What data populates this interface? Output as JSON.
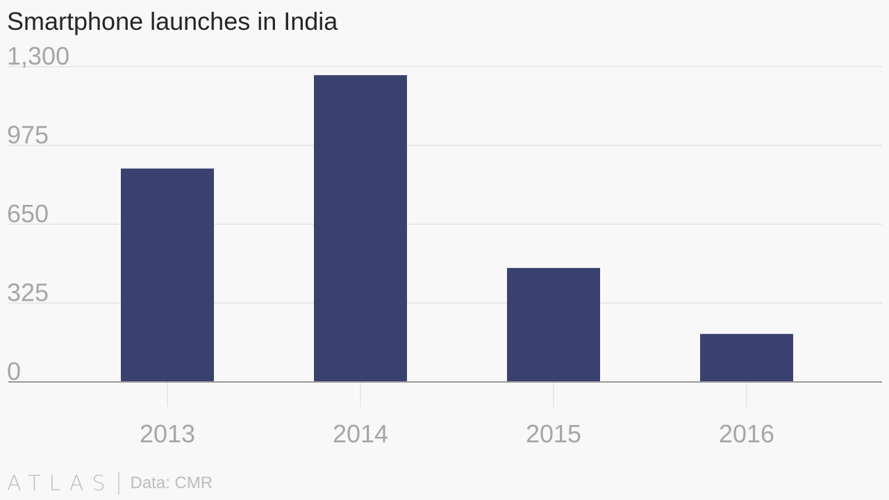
{
  "title": "Smartphone launches in India",
  "footer": {
    "brand": "ATLAS",
    "source": "Data: CMR"
  },
  "colors": {
    "bar": "#3b416e",
    "grid": "#e4e4e4",
    "axis": "#999999",
    "tick_label": "#a6a6a6"
  },
  "chart_data": {
    "type": "bar",
    "title": "Smartphone launches in India",
    "xlabel": "",
    "ylabel": "",
    "categories": [
      "2013",
      "2014",
      "2015",
      "2016"
    ],
    "values": [
      880,
      1265,
      470,
      198
    ],
    "ylim": [
      0,
      1300
    ],
    "yticks": [
      0,
      325,
      650,
      975,
      1300
    ],
    "ytick_labels": [
      "0",
      "325",
      "650",
      "975",
      "1,300"
    ],
    "grid": true,
    "legend": "none"
  }
}
